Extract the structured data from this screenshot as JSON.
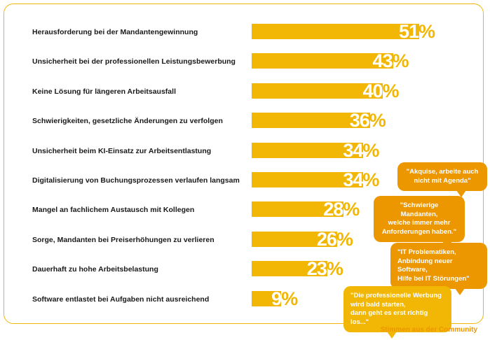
{
  "chart_data": {
    "type": "bar",
    "orientation": "horizontal",
    "categories": [
      "Herausforderung bei der Mandantengewinnung",
      "Unsicherheit bei der professionellen Leistungsbewerbung",
      "Keine Lösung für längeren Arbeitsausfall",
      "Schwierigkeiten, gesetzliche Änderungen zu verfolgen",
      "Unsicherheit beim KI-Einsatz zur Arbeitsentlastung",
      "Digitalisierung von Buchungsprozessen verlaufen langsam",
      "Mangel an fachlichem Austausch mit Kollegen",
      "Sorge, Mandanten bei Preiserhöhungen zu verlieren",
      "Dauerhaft zu hohe Arbeitsbelastung",
      "Software entlastet bei Aufgaben nicht ausreichend"
    ],
    "values": [
      51,
      43,
      40,
      36,
      34,
      34,
      28,
      26,
      23,
      9
    ],
    "value_labels": [
      "51%",
      "43%",
      "40%",
      "36%",
      "34%",
      "34%",
      "28%",
      "26%",
      "23%",
      "9%"
    ],
    "unit": "%",
    "xlim": [
      0,
      51
    ],
    "bar_color": "#f2b705"
  },
  "bubbles": [
    {
      "lines": [
        "\"Akquise, arbeite auch",
        "nicht mit Agenda\""
      ],
      "color": "#ec9600"
    },
    {
      "lines": [
        "\"Schwierige Mandanten,",
        "welche immer mehr",
        "Anforderungen haben.\""
      ],
      "color": "#ec9600"
    },
    {
      "lines": [
        "\"IT Problematiken,",
        "Anbindung neuer Software,",
        "Hilfe bei IT Störungen\""
      ],
      "color": "#ec9600"
    },
    {
      "lines": [
        "\"Die professionelle Werbung",
        "wird bald starten,",
        "dann geht es erst richtig los...\""
      ],
      "color": "#f2b705"
    }
  ],
  "community_caption": "Stimmen aus der Community",
  "colors": {
    "accent": "#f2b705",
    "bubble": "#ec9600",
    "text": "#1a1a1a"
  }
}
